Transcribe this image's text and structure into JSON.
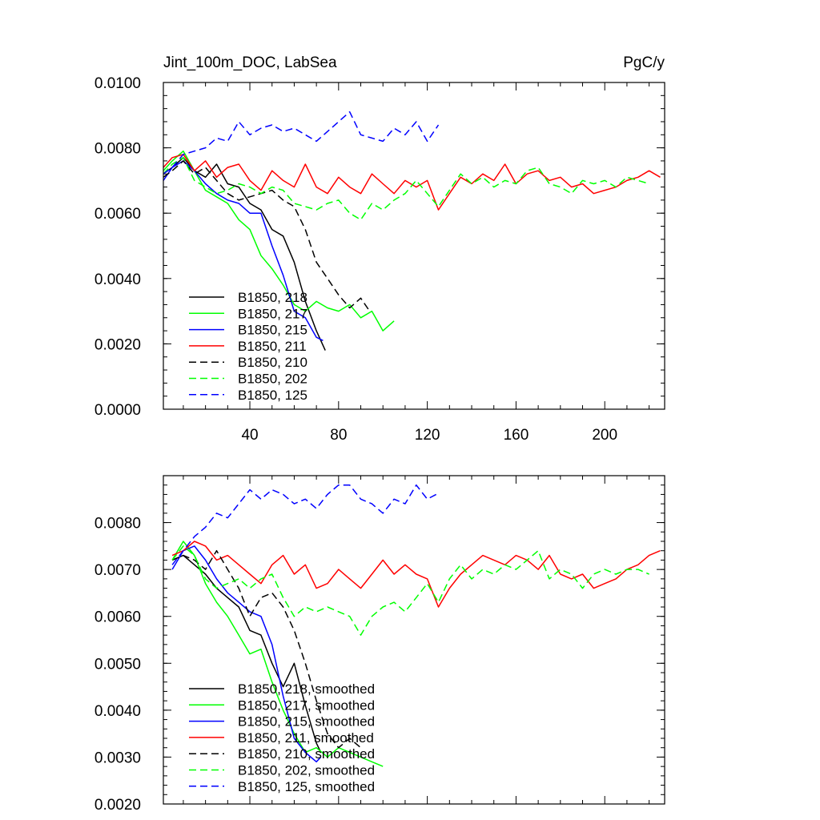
{
  "chart_data": [
    {
      "type": "line",
      "title": "Jint_100m_DOC, LabSea",
      "units": "PgC/y",
      "x_ticks": [
        40,
        80,
        120,
        160,
        200
      ],
      "xlim": [
        1,
        227
      ],
      "ylim": [
        0,
        0.01
      ],
      "y_ticks": [
        "0.0000",
        "0.0020",
        "0.0040",
        "0.0060",
        "0.0080",
        "0.0100"
      ],
      "legend_position": "lower-left",
      "series": [
        {
          "name": "B1850, 218",
          "color": "#000000",
          "dash": "solid",
          "x": [
            1,
            5,
            10,
            15,
            20,
            25,
            30,
            35,
            40,
            45,
            50,
            55,
            60,
            65,
            70,
            74
          ],
          "y": [
            0.0072,
            0.0074,
            0.0077,
            0.0073,
            0.0071,
            0.0075,
            0.0069,
            0.0068,
            0.0063,
            0.0061,
            0.0055,
            0.0053,
            0.0045,
            0.0033,
            0.0024,
            0.0018
          ]
        },
        {
          "name": "B1850, 217",
          "color": "#00ff00",
          "dash": "solid",
          "x": [
            1,
            5,
            10,
            15,
            20,
            25,
            30,
            35,
            40,
            45,
            50,
            55,
            60,
            65,
            70,
            75,
            80,
            85,
            90,
            95,
            100,
            105
          ],
          "y": [
            0.0073,
            0.0076,
            0.0079,
            0.0073,
            0.0067,
            0.0065,
            0.0063,
            0.0058,
            0.0055,
            0.0047,
            0.0043,
            0.0038,
            0.0032,
            0.003,
            0.0033,
            0.0031,
            0.003,
            0.0032,
            0.0028,
            0.003,
            0.0024,
            0.0027
          ]
        },
        {
          "name": "B1850, 215",
          "color": "#0000ff",
          "dash": "solid",
          "x": [
            1,
            5,
            10,
            15,
            20,
            25,
            30,
            35,
            40,
            45,
            50,
            55,
            60,
            65,
            70,
            73
          ],
          "y": [
            0.007,
            0.0074,
            0.0076,
            0.0073,
            0.0069,
            0.0066,
            0.0064,
            0.0063,
            0.006,
            0.006,
            0.005,
            0.0041,
            0.003,
            0.0028,
            0.0022,
            0.0021
          ]
        },
        {
          "name": "B1850, 211",
          "color": "#ff0000",
          "dash": "solid",
          "x": [
            1,
            5,
            10,
            15,
            20,
            25,
            30,
            35,
            40,
            45,
            50,
            55,
            60,
            65,
            70,
            75,
            80,
            85,
            90,
            95,
            100,
            105,
            110,
            115,
            120,
            125,
            130,
            135,
            140,
            145,
            150,
            155,
            160,
            165,
            170,
            175,
            180,
            185,
            190,
            195,
            200,
            205,
            210,
            215,
            220,
            225
          ],
          "y": [
            0.0074,
            0.0077,
            0.0078,
            0.0073,
            0.0076,
            0.0071,
            0.0074,
            0.0075,
            0.007,
            0.0067,
            0.0073,
            0.007,
            0.0068,
            0.0075,
            0.0068,
            0.0066,
            0.0071,
            0.0068,
            0.0066,
            0.0072,
            0.0069,
            0.0066,
            0.007,
            0.0068,
            0.007,
            0.0061,
            0.0066,
            0.0071,
            0.0069,
            0.0072,
            0.007,
            0.0075,
            0.0069,
            0.0072,
            0.0073,
            0.007,
            0.0071,
            0.0068,
            0.0069,
            0.0066,
            0.0067,
            0.0068,
            0.007,
            0.0071,
            0.0073,
            0.0071
          ]
        },
        {
          "name": "B1850, 210",
          "color": "#000000",
          "dash": "dashed",
          "x": [
            1,
            5,
            10,
            15,
            20,
            25,
            30,
            35,
            40,
            45,
            50,
            55,
            60,
            65,
            70,
            75,
            80,
            85,
            90,
            94
          ],
          "y": [
            0.0071,
            0.0073,
            0.0076,
            0.0072,
            0.0074,
            0.007,
            0.0066,
            0.0064,
            0.0065,
            0.0066,
            0.0067,
            0.0064,
            0.0062,
            0.0055,
            0.0045,
            0.004,
            0.0035,
            0.0031,
            0.0034,
            0.003
          ]
        },
        {
          "name": "B1850, 202",
          "color": "#00ff00",
          "dash": "dashed",
          "x": [
            1,
            5,
            10,
            15,
            20,
            25,
            30,
            35,
            40,
            45,
            50,
            55,
            60,
            65,
            70,
            75,
            80,
            85,
            90,
            95,
            100,
            105,
            110,
            115,
            120,
            125,
            130,
            135,
            140,
            145,
            150,
            155,
            160,
            165,
            170,
            175,
            180,
            185,
            190,
            195,
            200,
            205,
            210,
            215,
            220
          ],
          "y": [
            0.0072,
            0.0075,
            0.0077,
            0.007,
            0.0068,
            0.0066,
            0.0067,
            0.0069,
            0.0068,
            0.0066,
            0.0068,
            0.0067,
            0.0063,
            0.0062,
            0.0061,
            0.0063,
            0.0064,
            0.006,
            0.0058,
            0.0063,
            0.0061,
            0.0064,
            0.0066,
            0.007,
            0.0066,
            0.0062,
            0.0067,
            0.0072,
            0.0069,
            0.0071,
            0.0068,
            0.007,
            0.0069,
            0.0073,
            0.0074,
            0.0069,
            0.0068,
            0.0066,
            0.007,
            0.0069,
            0.007,
            0.0068,
            0.0071,
            0.007,
            0.0069
          ]
        },
        {
          "name": "B1850, 125",
          "color": "#0000ff",
          "dash": "dashed",
          "x": [
            1,
            5,
            10,
            15,
            20,
            25,
            30,
            35,
            40,
            45,
            50,
            55,
            60,
            65,
            70,
            75,
            80,
            85,
            90,
            95,
            100,
            105,
            110,
            115,
            120,
            125
          ],
          "y": [
            0.0072,
            0.0074,
            0.0078,
            0.0079,
            0.008,
            0.0083,
            0.0082,
            0.0088,
            0.0084,
            0.0086,
            0.0087,
            0.0085,
            0.0086,
            0.0084,
            0.0082,
            0.0085,
            0.0088,
            0.0091,
            0.0084,
            0.0083,
            0.0082,
            0.0086,
            0.0084,
            0.0088,
            0.0082,
            0.0087
          ]
        }
      ]
    },
    {
      "type": "line",
      "x_ticks": [
        40,
        80,
        120,
        160,
        200
      ],
      "xlim": [
        1,
        227
      ],
      "ylim": [
        0.002,
        0.009
      ],
      "y_ticks": [
        "0.0020",
        "0.0030",
        "0.0040",
        "0.0050",
        "0.0060",
        "0.0070",
        "0.0080"
      ],
      "legend_position": "lower-left",
      "series": [
        {
          "name": "B1850, 218, smoothed",
          "color": "#000000",
          "dash": "solid",
          "x": [
            5,
            10,
            15,
            20,
            25,
            30,
            35,
            40,
            45,
            50,
            55,
            60,
            65,
            70,
            72
          ],
          "y": [
            0.0072,
            0.0073,
            0.0071,
            0.0069,
            0.0066,
            0.0064,
            0.0062,
            0.0057,
            0.0056,
            0.005,
            0.0045,
            0.005,
            0.0041,
            0.0033,
            0.0031
          ]
        },
        {
          "name": "B1850, 217, smoothed",
          "color": "#00ff00",
          "dash": "solid",
          "x": [
            5,
            10,
            15,
            20,
            25,
            30,
            35,
            40,
            45,
            50,
            55,
            60,
            65,
            70,
            75,
            80,
            85,
            90,
            95,
            100
          ],
          "y": [
            0.0072,
            0.0076,
            0.0073,
            0.0067,
            0.0063,
            0.006,
            0.0056,
            0.0052,
            0.0053,
            0.0046,
            0.004,
            0.0035,
            0.0031,
            0.0032,
            0.003,
            0.0032,
            0.0031,
            0.003,
            0.0029,
            0.0028
          ]
        },
        {
          "name": "B1850, 215, smoothed",
          "color": "#0000ff",
          "dash": "solid",
          "x": [
            5,
            10,
            15,
            20,
            25,
            30,
            35,
            40,
            45,
            50,
            55,
            60,
            65,
            70,
            72
          ],
          "y": [
            0.007,
            0.0074,
            0.0075,
            0.0072,
            0.0068,
            0.0065,
            0.0063,
            0.0061,
            0.006,
            0.0054,
            0.0043,
            0.0034,
            0.0031,
            0.0029,
            0.003
          ]
        },
        {
          "name": "B1850, 211, smoothed",
          "color": "#ff0000",
          "dash": "solid",
          "x": [
            5,
            10,
            15,
            20,
            25,
            30,
            35,
            40,
            45,
            50,
            55,
            60,
            65,
            70,
            75,
            80,
            85,
            90,
            95,
            100,
            105,
            110,
            115,
            120,
            125,
            130,
            135,
            140,
            145,
            150,
            155,
            160,
            165,
            170,
            175,
            180,
            185,
            190,
            195,
            200,
            205,
            210,
            215,
            220,
            225
          ],
          "y": [
            0.0073,
            0.0074,
            0.0076,
            0.0075,
            0.0072,
            0.0073,
            0.0071,
            0.0069,
            0.0067,
            0.0071,
            0.0073,
            0.0069,
            0.0071,
            0.0066,
            0.0067,
            0.007,
            0.0068,
            0.0066,
            0.0069,
            0.0072,
            0.0069,
            0.0071,
            0.0069,
            0.0068,
            0.0062,
            0.0066,
            0.0069,
            0.0071,
            0.0073,
            0.0072,
            0.0071,
            0.0073,
            0.0072,
            0.007,
            0.0073,
            0.0069,
            0.0068,
            0.0069,
            0.0066,
            0.0067,
            0.0068,
            0.007,
            0.0071,
            0.0073,
            0.0074
          ]
        },
        {
          "name": "B1850, 210, smoothed",
          "color": "#000000",
          "dash": "dashed",
          "x": [
            5,
            10,
            15,
            20,
            25,
            30,
            35,
            40,
            45,
            50,
            55,
            60,
            65,
            70,
            75,
            80,
            85,
            90
          ],
          "y": [
            0.0072,
            0.0073,
            0.0072,
            0.007,
            0.0074,
            0.007,
            0.0066,
            0.006,
            0.0064,
            0.0065,
            0.0062,
            0.0057,
            0.005,
            0.0042,
            0.0035,
            0.0032,
            0.0034,
            0.0032
          ]
        },
        {
          "name": "B1850, 202, smoothed",
          "color": "#00ff00",
          "dash": "dashed",
          "x": [
            5,
            10,
            15,
            20,
            25,
            30,
            35,
            40,
            45,
            50,
            55,
            60,
            65,
            70,
            75,
            80,
            85,
            90,
            95,
            100,
            105,
            110,
            115,
            120,
            125,
            130,
            135,
            140,
            145,
            150,
            155,
            160,
            165,
            170,
            175,
            180,
            185,
            190,
            195,
            200,
            205,
            210,
            215,
            220
          ],
          "y": [
            0.0072,
            0.0075,
            0.0073,
            0.0068,
            0.0066,
            0.0067,
            0.0068,
            0.0066,
            0.0068,
            0.0069,
            0.0064,
            0.006,
            0.0062,
            0.0061,
            0.0062,
            0.0061,
            0.006,
            0.0056,
            0.006,
            0.0062,
            0.0063,
            0.0061,
            0.0064,
            0.0067,
            0.0063,
            0.0068,
            0.0071,
            0.0068,
            0.007,
            0.0069,
            0.0071,
            0.007,
            0.0072,
            0.0074,
            0.0068,
            0.007,
            0.0069,
            0.0066,
            0.0069,
            0.007,
            0.0069,
            0.007,
            0.007,
            0.0069
          ]
        },
        {
          "name": "B1850, 125, smoothed",
          "color": "#0000ff",
          "dash": "dashed",
          "x": [
            5,
            10,
            15,
            20,
            25,
            30,
            35,
            40,
            45,
            50,
            55,
            60,
            65,
            70,
            75,
            80,
            85,
            90,
            95,
            100,
            105,
            110,
            115,
            120,
            124
          ],
          "y": [
            0.0071,
            0.0074,
            0.0077,
            0.0079,
            0.0082,
            0.0081,
            0.0084,
            0.0087,
            0.0085,
            0.0087,
            0.0086,
            0.0084,
            0.0085,
            0.0083,
            0.0086,
            0.0088,
            0.0088,
            0.0085,
            0.0084,
            0.0082,
            0.0085,
            0.0084,
            0.0088,
            0.0085,
            0.0086
          ]
        }
      ]
    }
  ]
}
